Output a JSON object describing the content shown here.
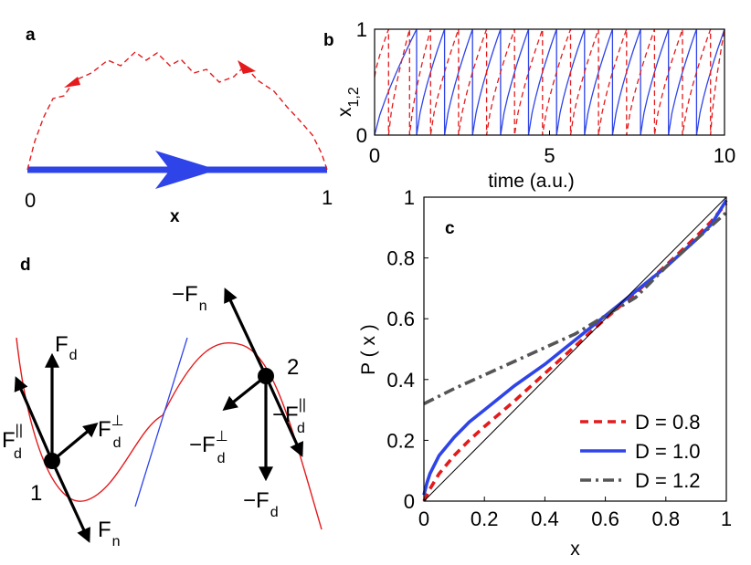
{
  "colors": {
    "red": "#e41a1c",
    "blue": "#2e44e8",
    "gray": "#555555",
    "black": "#000000"
  },
  "panels": {
    "a": {
      "label": "a",
      "start": "0",
      "end": "1",
      "xlabel": "x"
    },
    "b": {
      "label": "b"
    },
    "c": {
      "label": "c"
    },
    "d": {
      "label": "d"
    }
  },
  "forces": {
    "p1": "1",
    "p2": "2",
    "Fd": {
      "main": "F",
      "sub": "d"
    },
    "Fd_par": {
      "main": "F",
      "sub": "d",
      "sup": "||"
    },
    "Fd_perp": {
      "main": "F",
      "sub": "d",
      "sup": "⊥"
    },
    "Fn": {
      "main": "F",
      "sub": "n"
    },
    "negFn": {
      "main": "−F",
      "sub": "n"
    },
    "negFd": {
      "main": "−F",
      "sub": "d"
    },
    "negFd_par": {
      "main": "−F",
      "sub": "d",
      "sup": "||"
    },
    "negFd_perp": {
      "main": "−F",
      "sub": "d",
      "sup": "⊥"
    }
  },
  "chart_data": [
    {
      "id": "b",
      "type": "line",
      "title": "",
      "xlabel": "time (a.u.)",
      "ylabel_main": "x",
      "ylabel_sub": "1,2",
      "xlim": [
        0,
        10
      ],
      "ylim": [
        0,
        1
      ],
      "xticks": [
        0,
        5,
        10
      ],
      "yticks": [
        0,
        1
      ],
      "series": [
        {
          "name": "x1",
          "style": "solid",
          "color": "blue",
          "period": 0.8,
          "phase_offset": 0.0,
          "reset_times": [
            1.2,
            2.0,
            2.8,
            3.6,
            4.4,
            5.2,
            6.0,
            6.8,
            7.6,
            8.4,
            9.2
          ],
          "description": "sawtooth: slow rise from 0 to 1 then instantaneous reset"
        },
        {
          "name": "x2",
          "style": "dashed",
          "color": "red",
          "period": 0.8,
          "phase_offset": 0.3,
          "reset_times": [
            0.4,
            1.0,
            1.6,
            2.4,
            3.2,
            4.0,
            4.8,
            5.6,
            6.4,
            7.2,
            8.0,
            8.8,
            9.6
          ],
          "description": "sawtooth out of phase with x1"
        }
      ]
    },
    {
      "id": "c",
      "type": "line",
      "title": "",
      "xlabel": "x",
      "ylabel": "P ( x )",
      "xlim": [
        0,
        1
      ],
      "ylim": [
        0,
        1
      ],
      "xticks": [
        0,
        0.2,
        0.4,
        0.6,
        0.8,
        1
      ],
      "yticks": [
        0,
        0.2,
        0.4,
        0.6,
        0.8,
        1
      ],
      "legend_position": "bottom-right",
      "series": [
        {
          "name": "D = 0.8",
          "style": "dashed",
          "color": "red",
          "x": [
            0,
            0.02,
            0.05,
            0.1,
            0.15,
            0.2,
            0.3,
            0.4,
            0.5,
            0.6,
            0.7,
            0.75,
            0.8,
            0.9,
            0.95,
            1.0
          ],
          "y": [
            0,
            0.04,
            0.09,
            0.15,
            0.2,
            0.245,
            0.33,
            0.42,
            0.51,
            0.6,
            0.685,
            0.73,
            0.775,
            0.87,
            0.92,
            0.98
          ]
        },
        {
          "name": "D = 1.0",
          "style": "solid",
          "color": "blue",
          "x": [
            0,
            0.01,
            0.02,
            0.05,
            0.1,
            0.15,
            0.2,
            0.3,
            0.4,
            0.5,
            0.6,
            0.7,
            0.75,
            0.8,
            0.9,
            0.95,
            1.0
          ],
          "y": [
            0.02,
            0.06,
            0.09,
            0.15,
            0.21,
            0.26,
            0.3,
            0.38,
            0.45,
            0.53,
            0.61,
            0.69,
            0.73,
            0.77,
            0.86,
            0.91,
            0.99
          ]
        },
        {
          "name": "D = 1.2",
          "style": "dashdot",
          "color": "gray",
          "x": [
            0,
            0.1,
            0.2,
            0.3,
            0.4,
            0.5,
            0.6,
            0.7,
            0.75,
            0.8,
            0.9,
            1.0
          ],
          "y": [
            0.32,
            0.37,
            0.415,
            0.46,
            0.505,
            0.55,
            0.61,
            0.67,
            0.72,
            0.77,
            0.86,
            0.95
          ]
        },
        {
          "name": "identity",
          "style": "thin",
          "color": "black",
          "x": [
            0,
            1
          ],
          "y": [
            0,
            1
          ]
        }
      ]
    }
  ]
}
